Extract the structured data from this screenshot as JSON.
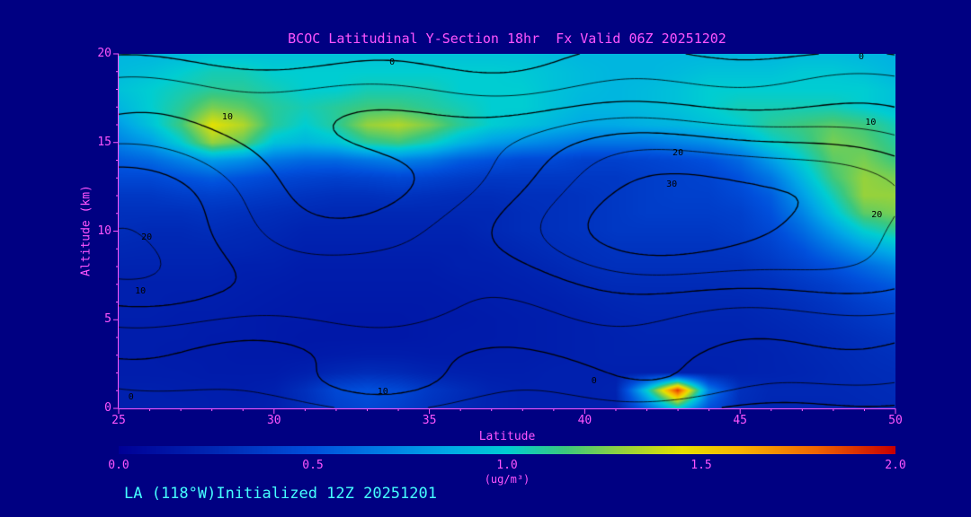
{
  "colors": {
    "background": "#000082",
    "axis_and_labels": "#ff55ff",
    "annotation_text": "#45ffff",
    "contour_lines": "#000000"
  },
  "chart_data": {
    "type": "heatmap",
    "title": "BCOC Latitudinal Y-Section 18hr  Fx Valid 06Z 20251202",
    "xlabel": "Latitude",
    "ylabel": "Altitude (km)",
    "annotation": "LA (118°W)Initialized 12Z 20251201",
    "xlim": [
      25,
      50
    ],
    "ylim": [
      0,
      20
    ],
    "x_ticks": [
      25,
      30,
      35,
      40,
      45,
      50
    ],
    "y_ticks": [
      0,
      5,
      10,
      15,
      20
    ],
    "x_minor_step": 1,
    "y_minor_step": 1,
    "grid": false,
    "lat": [
      25,
      26,
      27,
      28,
      29,
      30,
      31,
      32,
      33,
      34,
      35,
      36,
      37,
      38,
      39,
      40,
      41,
      42,
      43,
      44,
      45,
      46,
      47,
      48,
      49,
      50
    ],
    "alt": [
      0,
      1,
      2,
      3,
      4,
      5,
      6,
      7,
      8,
      9,
      10,
      11,
      12,
      13,
      14,
      15,
      16,
      17,
      18,
      19,
      20
    ],
    "fill_units": "ug/m3",
    "fill_values_rows_bottom_to_top": [
      [
        0.2,
        0.2,
        0.2,
        0.19,
        0.19,
        0.2,
        0.28,
        0.4,
        0.45,
        0.4,
        0.32,
        0.26,
        0.22,
        0.2,
        0.2,
        0.2,
        0.2,
        0.6,
        1.0,
        0.5,
        0.28,
        0.24,
        0.24,
        0.24,
        0.25,
        0.26
      ],
      [
        0.2,
        0.2,
        0.19,
        0.19,
        0.18,
        0.2,
        0.3,
        0.45,
        0.5,
        0.45,
        0.35,
        0.28,
        0.22,
        0.2,
        0.2,
        0.2,
        0.22,
        1.0,
        1.9,
        0.7,
        0.3,
        0.25,
        0.25,
        0.25,
        0.26,
        0.27
      ],
      [
        0.18,
        0.18,
        0.18,
        0.17,
        0.17,
        0.17,
        0.2,
        0.25,
        0.28,
        0.26,
        0.22,
        0.2,
        0.19,
        0.19,
        0.2,
        0.2,
        0.2,
        0.2,
        0.2,
        0.2,
        0.21,
        0.22,
        0.23,
        0.25,
        0.27,
        0.28
      ],
      [
        0.18,
        0.18,
        0.17,
        0.17,
        0.16,
        0.16,
        0.16,
        0.17,
        0.18,
        0.18,
        0.17,
        0.17,
        0.18,
        0.18,
        0.19,
        0.2,
        0.21,
        0.21,
        0.21,
        0.21,
        0.21,
        0.22,
        0.24,
        0.26,
        0.28,
        0.3
      ],
      [
        0.18,
        0.18,
        0.18,
        0.17,
        0.17,
        0.16,
        0.15,
        0.15,
        0.15,
        0.15,
        0.16,
        0.17,
        0.17,
        0.18,
        0.19,
        0.2,
        0.21,
        0.22,
        0.22,
        0.22,
        0.22,
        0.23,
        0.25,
        0.27,
        0.3,
        0.33
      ],
      [
        0.19,
        0.19,
        0.18,
        0.18,
        0.17,
        0.16,
        0.16,
        0.15,
        0.15,
        0.15,
        0.16,
        0.16,
        0.17,
        0.18,
        0.19,
        0.2,
        0.22,
        0.23,
        0.23,
        0.23,
        0.23,
        0.25,
        0.27,
        0.3,
        0.34,
        0.38
      ],
      [
        0.2,
        0.2,
        0.19,
        0.19,
        0.18,
        0.17,
        0.16,
        0.16,
        0.16,
        0.16,
        0.16,
        0.17,
        0.18,
        0.19,
        0.2,
        0.22,
        0.24,
        0.25,
        0.25,
        0.25,
        0.25,
        0.27,
        0.3,
        0.34,
        0.4,
        0.45
      ],
      [
        0.2,
        0.2,
        0.2,
        0.2,
        0.19,
        0.18,
        0.17,
        0.17,
        0.17,
        0.17,
        0.17,
        0.18,
        0.19,
        0.2,
        0.22,
        0.25,
        0.27,
        0.27,
        0.27,
        0.27,
        0.28,
        0.3,
        0.35,
        0.4,
        0.48,
        0.55
      ],
      [
        0.22,
        0.22,
        0.22,
        0.22,
        0.2,
        0.2,
        0.18,
        0.18,
        0.18,
        0.18,
        0.18,
        0.2,
        0.2,
        0.22,
        0.25,
        0.28,
        0.3,
        0.3,
        0.3,
        0.3,
        0.3,
        0.35,
        0.42,
        0.5,
        0.6,
        0.7
      ],
      [
        0.25,
        0.24,
        0.24,
        0.24,
        0.24,
        0.22,
        0.2,
        0.2,
        0.2,
        0.2,
        0.2,
        0.2,
        0.22,
        0.25,
        0.28,
        0.3,
        0.32,
        0.32,
        0.32,
        0.32,
        0.34,
        0.4,
        0.5,
        0.65,
        0.8,
        0.9
      ],
      [
        0.28,
        0.26,
        0.26,
        0.28,
        0.26,
        0.25,
        0.22,
        0.22,
        0.22,
        0.22,
        0.22,
        0.22,
        0.25,
        0.28,
        0.3,
        0.32,
        0.35,
        0.35,
        0.35,
        0.35,
        0.38,
        0.45,
        0.6,
        0.8,
        1.0,
        1.1
      ],
      [
        0.3,
        0.3,
        0.3,
        0.32,
        0.3,
        0.28,
        0.26,
        0.25,
        0.25,
        0.25,
        0.25,
        0.25,
        0.25,
        0.28,
        0.3,
        0.32,
        0.35,
        0.38,
        0.38,
        0.38,
        0.4,
        0.5,
        0.7,
        0.95,
        1.2,
        1.25
      ],
      [
        0.35,
        0.35,
        0.38,
        0.4,
        0.38,
        0.35,
        0.32,
        0.3,
        0.3,
        0.32,
        0.3,
        0.28,
        0.28,
        0.3,
        0.3,
        0.32,
        0.35,
        0.38,
        0.4,
        0.4,
        0.45,
        0.55,
        0.8,
        1.05,
        1.3,
        1.3
      ],
      [
        0.45,
        0.45,
        0.5,
        0.55,
        0.5,
        0.45,
        0.42,
        0.4,
        0.42,
        0.45,
        0.42,
        0.38,
        0.35,
        0.35,
        0.35,
        0.35,
        0.35,
        0.38,
        0.4,
        0.42,
        0.5,
        0.65,
        0.9,
        1.15,
        1.3,
        1.25
      ],
      [
        0.55,
        0.6,
        0.7,
        0.8,
        0.75,
        0.65,
        0.6,
        0.6,
        0.65,
        0.7,
        0.65,
        0.55,
        0.5,
        0.45,
        0.45,
        0.4,
        0.4,
        0.42,
        0.45,
        0.5,
        0.6,
        0.8,
        1.0,
        1.2,
        1.25,
        1.15
      ],
      [
        0.7,
        0.8,
        1.0,
        1.3,
        1.2,
        0.95,
        0.9,
        0.95,
        1.1,
        1.15,
        1.05,
        0.9,
        0.8,
        0.75,
        0.7,
        0.65,
        0.65,
        0.65,
        0.7,
        0.75,
        0.85,
        1.0,
        1.1,
        1.25,
        1.2,
        1.1
      ],
      [
        0.8,
        0.95,
        1.15,
        1.45,
        1.35,
        1.1,
        1.0,
        1.1,
        1.3,
        1.35,
        1.25,
        1.1,
        1.0,
        0.95,
        0.9,
        0.85,
        0.85,
        0.88,
        0.9,
        0.95,
        1.0,
        1.1,
        1.15,
        1.2,
        1.15,
        1.05
      ],
      [
        0.9,
        1.0,
        1.1,
        1.25,
        1.2,
        1.1,
        1.05,
        1.1,
        1.15,
        1.15,
        1.1,
        1.05,
        1.0,
        1.0,
        0.95,
        0.9,
        0.9,
        0.92,
        0.95,
        1.0,
        1.05,
        1.05,
        1.05,
        1.05,
        1.0,
        0.95
      ],
      [
        0.95,
        1.0,
        1.05,
        1.1,
        1.1,
        1.05,
        1.0,
        1.0,
        1.05,
        1.05,
        1.05,
        1.0,
        1.0,
        1.0,
        0.95,
        0.92,
        0.9,
        0.92,
        0.95,
        1.0,
        1.0,
        1.0,
        1.0,
        1.0,
        1.0,
        0.95
      ],
      [
        0.92,
        0.95,
        1.0,
        1.05,
        1.05,
        1.0,
        1.0,
        1.0,
        1.0,
        1.0,
        1.0,
        1.0,
        1.0,
        0.98,
        0.95,
        0.92,
        0.9,
        0.9,
        0.92,
        0.95,
        0.95,
        0.95,
        0.98,
        0.98,
        0.95,
        0.9
      ],
      [
        0.9,
        0.9,
        0.92,
        0.95,
        0.95,
        0.95,
        0.95,
        0.95,
        0.95,
        0.95,
        0.95,
        0.95,
        0.95,
        0.95,
        0.92,
        0.9,
        0.9,
        0.9,
        0.9,
        0.9,
        0.9,
        0.9,
        0.92,
        0.92,
        0.9,
        0.88
      ]
    ],
    "colorbar": {
      "min": 0.0,
      "max": 2.0,
      "ticks": [
        "0.0",
        "0.5",
        "1.0",
        "1.5",
        "2.0"
      ],
      "label": "(ug/m³)",
      "stops": [
        [
          0.0,
          "#000096"
        ],
        [
          0.25,
          "#0028b4"
        ],
        [
          0.5,
          "#0050dc"
        ],
        [
          0.7,
          "#0082e6"
        ],
        [
          0.85,
          "#00aae6"
        ],
        [
          1.0,
          "#00cdd2"
        ],
        [
          1.15,
          "#3cc87d"
        ],
        [
          1.3,
          "#96d23c"
        ],
        [
          1.45,
          "#e6e100"
        ],
        [
          1.6,
          "#fab400"
        ],
        [
          1.8,
          "#f06400"
        ],
        [
          2.0,
          "#c80000"
        ]
      ]
    },
    "contours": {
      "levels": [
        0,
        5,
        10,
        15,
        20,
        25,
        30,
        35,
        40
      ],
      "labeled_levels": [
        0,
        10,
        20,
        30
      ],
      "model": {
        "base": {
          "amp": 20,
          "off": -1.5
        },
        "bumps": [
          {
            "a": 16,
            "lat": 44,
            "alt": 11.5,
            "sl": 40,
            "sa": 22
          },
          {
            "a": 7,
            "lat": 25,
            "alt": 9,
            "sl": 60,
            "sa": 25
          },
          {
            "a": -14,
            "lat": 32.5,
            "alt": 11.5,
            "sl": 16,
            "sa": 10
          },
          {
            "a": 8,
            "lat": 34,
            "alt": 1.2,
            "sl": 30,
            "sa": 4
          },
          {
            "a": 6,
            "lat": 43,
            "alt": 1.0,
            "sl": 12,
            "sa": 2.5
          }
        ],
        "wiggle": {
          "a1": 1.3,
          "f1": 0.8,
          "a2": 1.0,
          "f2": 1.1,
          "fx": 0.25
        }
      },
      "labels": [
        {
          "text": "0",
          "lat": 33.8,
          "alt": 19.5
        },
        {
          "text": "0",
          "lat": 48.9,
          "alt": 19.8
        },
        {
          "text": "10",
          "lat": 28.5,
          "alt": 16.4
        },
        {
          "text": "10",
          "lat": 49.2,
          "alt": 16.1
        },
        {
          "text": "20",
          "lat": 43.0,
          "alt": 14.4
        },
        {
          "text": "30",
          "lat": 42.8,
          "alt": 12.6
        },
        {
          "text": "20",
          "lat": 49.4,
          "alt": 10.9
        },
        {
          "text": "20",
          "lat": 25.9,
          "alt": 9.6
        },
        {
          "text": "10",
          "lat": 25.7,
          "alt": 6.6
        },
        {
          "text": "10",
          "lat": 33.5,
          "alt": 0.9
        },
        {
          "text": "0",
          "lat": 25.4,
          "alt": 0.6
        },
        {
          "text": "0",
          "lat": 40.3,
          "alt": 1.5
        }
      ]
    }
  }
}
